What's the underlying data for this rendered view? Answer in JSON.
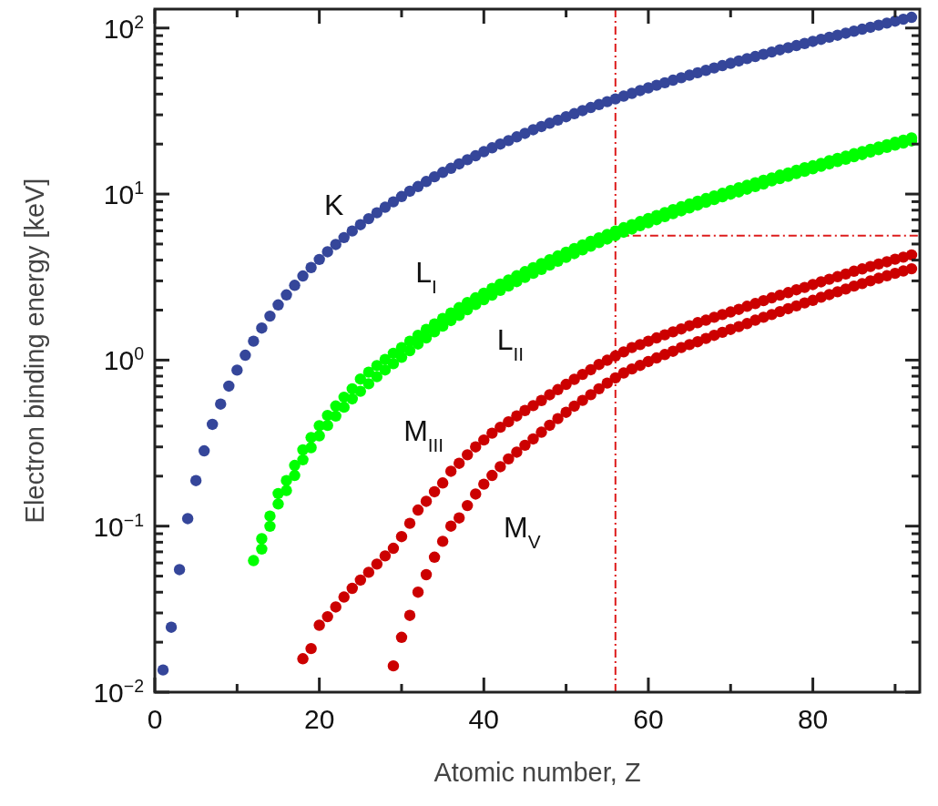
{
  "chart_data": {
    "type": "scatter",
    "xlabel": "Atomic number, Z",
    "ylabel": "Electron binding energy [keV]",
    "log": "y",
    "grid": false,
    "marker": "circle",
    "xlim": [
      0,
      93
    ],
    "ylim": [
      0.01,
      130
    ],
    "xticks": [
      0,
      {
        "value": 10,
        "label": null
      },
      20,
      {
        "value": 30,
        "label": null
      },
      40,
      {
        "value": 50,
        "label": null
      },
      60,
      {
        "value": 70,
        "label": null
      },
      80,
      {
        "value": 90,
        "label": null
      }
    ],
    "yticks": [
      {
        "value": 0.01,
        "label": "10$^{−2}$"
      },
      {
        "value": 0.02,
        "label": null
      },
      {
        "value": 0.03,
        "label": null
      },
      {
        "value": 0.04,
        "label": null
      },
      {
        "value": 0.05,
        "label": null
      },
      {
        "value": 0.06,
        "label": null
      },
      {
        "value": 0.07,
        "label": null
      },
      {
        "value": 0.08,
        "label": null
      },
      {
        "value": 0.09,
        "label": null
      },
      {
        "value": 0.1,
        "label": "10$^{−1}$"
      },
      {
        "value": 0.2,
        "label": null
      },
      {
        "value": 0.3,
        "label": null
      },
      {
        "value": 0.4,
        "label": null
      },
      {
        "value": 0.5,
        "label": null
      },
      {
        "value": 0.6,
        "label": null
      },
      {
        "value": 0.7,
        "label": null
      },
      {
        "value": 0.8,
        "label": null
      },
      {
        "value": 0.9,
        "label": null
      },
      {
        "value": 1,
        "label": "10$^{0}$"
      },
      {
        "value": 2,
        "label": null
      },
      {
        "value": 3,
        "label": null
      },
      {
        "value": 4,
        "label": null
      },
      {
        "value": 5,
        "label": null
      },
      {
        "value": 6,
        "label": null
      },
      {
        "value": 7,
        "label": null
      },
      {
        "value": 8,
        "label": null
      },
      {
        "value": 9,
        "label": null
      },
      {
        "value": 10,
        "label": "10$^{1}$"
      },
      {
        "value": 20,
        "label": null
      },
      {
        "value": 30,
        "label": null
      },
      {
        "value": 40,
        "label": null
      },
      {
        "value": 50,
        "label": null
      },
      {
        "value": 60,
        "label": null
      },
      {
        "value": 70,
        "label": null
      },
      {
        "value": 80,
        "label": null
      },
      {
        "value": 90,
        "label": null
      },
      {
        "value": 100,
        "label": "10$^{2}$"
      }
    ],
    "ref_lines": [
      {
        "axis": "x",
        "value": 56,
        "color": "#dd1c1c",
        "line_style": "dashed"
      },
      {
        "axis": "y",
        "value": 5.62,
        "color": "#dd1c1c",
        "line_style": "dashed"
      }
    ],
    "series": [
      {
        "name": "K",
        "color": "#35469a",
        "x": [
          1,
          2,
          3,
          4,
          5,
          6,
          7,
          8,
          9,
          10,
          11,
          12,
          13,
          14,
          15,
          16,
          17,
          18,
          19,
          20,
          21,
          22,
          23,
          24,
          25,
          26,
          27,
          28,
          29,
          30,
          31,
          32,
          33,
          34,
          35,
          36,
          37,
          38,
          39,
          40,
          41,
          42,
          43,
          44,
          45,
          46,
          47,
          48,
          49,
          50,
          51,
          52,
          53,
          54,
          55,
          56,
          57,
          58,
          59,
          60,
          61,
          62,
          63,
          64,
          65,
          66,
          67,
          68,
          69,
          70,
          71,
          72,
          73,
          74,
          75,
          76,
          77,
          78,
          79,
          80,
          81,
          82,
          83,
          84,
          85,
          86,
          87,
          88,
          89,
          90,
          91,
          92
        ],
        "values": [
          0.0136,
          0.0246,
          0.0547,
          0.111,
          0.188,
          0.284,
          0.41,
          0.543,
          0.697,
          0.87,
          1.07,
          1.3,
          1.56,
          1.84,
          2.15,
          2.47,
          2.82,
          3.21,
          3.61,
          4.04,
          4.49,
          4.97,
          5.47,
          5.99,
          6.54,
          7.11,
          7.71,
          8.33,
          8.98,
          9.66,
          10.4,
          11.1,
          11.9,
          12.7,
          13.5,
          14.3,
          15.2,
          16.1,
          17.0,
          18.0,
          19.0,
          20.0,
          21.0,
          22.1,
          23.2,
          24.4,
          25.5,
          26.7,
          27.9,
          29.2,
          30.5,
          31.8,
          33.2,
          34.6,
          36.0,
          37.4,
          38.9,
          40.4,
          42.0,
          43.6,
          45.2,
          46.8,
          48.5,
          50.2,
          52.0,
          53.8,
          55.6,
          57.5,
          59.4,
          61.3,
          63.3,
          65.4,
          67.4,
          69.5,
          71.7,
          73.9,
          76.1,
          78.4,
          80.7,
          83.1,
          85.5,
          88.0,
          90.5,
          93.1,
          95.7,
          98.4,
          101,
          104,
          107,
          110,
          113,
          116
        ]
      },
      {
        "name": "L$_{I}$",
        "color": "#00ff00",
        "x": [
          12,
          13,
          14,
          15,
          16,
          17,
          18,
          19,
          20,
          21,
          22,
          23,
          24,
          25,
          26,
          27,
          28,
          29,
          30,
          31,
          32,
          33,
          34,
          35,
          36,
          37,
          38,
          39,
          40,
          41,
          42,
          43,
          44,
          45,
          46,
          47,
          48,
          49,
          50,
          51,
          52,
          53,
          54,
          55,
          56,
          57,
          58,
          59,
          60,
          61,
          62,
          63,
          64,
          65,
          66,
          67,
          68,
          69,
          70,
          71,
          72,
          73,
          74,
          75,
          76,
          77,
          78,
          79,
          80,
          81,
          82,
          83,
          84,
          85,
          86,
          87,
          88,
          89,
          90,
          91,
          92
        ],
        "values": [
          0.062,
          0.084,
          0.115,
          0.157,
          0.188,
          0.232,
          0.288,
          0.342,
          0.403,
          0.464,
          0.529,
          0.598,
          0.671,
          0.769,
          0.846,
          0.926,
          1.01,
          1.1,
          1.19,
          1.3,
          1.41,
          1.53,
          1.65,
          1.78,
          1.92,
          2.07,
          2.22,
          2.37,
          2.53,
          2.7,
          2.87,
          3.04,
          3.22,
          3.41,
          3.6,
          3.81,
          4.02,
          4.24,
          4.46,
          4.7,
          4.94,
          5.19,
          5.45,
          5.71,
          5.99,
          6.27,
          6.55,
          6.83,
          7.13,
          7.43,
          7.74,
          8.05,
          8.38,
          8.71,
          9.05,
          9.39,
          9.75,
          10.1,
          10.5,
          10.9,
          11.3,
          11.7,
          12.1,
          12.5,
          13.0,
          13.4,
          13.9,
          14.4,
          14.8,
          15.3,
          15.9,
          16.4,
          16.9,
          17.5,
          18.0,
          18.6,
          19.2,
          19.8,
          20.5,
          21.1,
          21.8
        ]
      },
      {
        "name": "L$_{II}$",
        "color": "#00ff00",
        "x": [
          13,
          14,
          15,
          16,
          17,
          18,
          19,
          20,
          21,
          22,
          23,
          24,
          25,
          26,
          27,
          28,
          29,
          30,
          31,
          32,
          33,
          34,
          35,
          36,
          37,
          38,
          39,
          40,
          41,
          42,
          43,
          44,
          45,
          46,
          47,
          48,
          49,
          50,
          51,
          52,
          53,
          54,
          55,
          56,
          57,
          58,
          59,
          60,
          61,
          62,
          63,
          64,
          65,
          66,
          67,
          68,
          69,
          70,
          71,
          72,
          73,
          74,
          75,
          76,
          77,
          78,
          79,
          80,
          81,
          82,
          83,
          84,
          85,
          86,
          87,
          88,
          89,
          90,
          91,
          92
        ],
        "values": [
          0.0728,
          0.0998,
          0.136,
          0.164,
          0.202,
          0.251,
          0.297,
          0.35,
          0.404,
          0.46,
          0.52,
          0.584,
          0.649,
          0.72,
          0.794,
          0.872,
          0.951,
          1.04,
          1.14,
          1.25,
          1.36,
          1.48,
          1.6,
          1.73,
          1.86,
          2.01,
          2.16,
          2.31,
          2.46,
          2.63,
          2.79,
          2.97,
          3.15,
          3.33,
          3.52,
          3.73,
          3.94,
          4.16,
          4.38,
          4.61,
          4.85,
          5.1,
          5.36,
          5.62,
          5.89,
          6.16,
          6.44,
          6.72,
          7.01,
          7.31,
          7.62,
          7.93,
          8.25,
          8.58,
          8.92,
          9.26,
          9.62,
          9.98,
          10.3,
          10.7,
          11.1,
          11.5,
          12.0,
          12.4,
          12.8,
          13.3,
          13.7,
          14.2,
          14.7,
          15.2,
          15.7,
          16.2,
          16.8,
          17.3,
          17.9,
          18.5,
          19.1,
          19.7,
          20.3,
          20.9
        ]
      },
      {
        "name": "M$_{III}$",
        "color": "#cc0000",
        "x": [
          18,
          19,
          20,
          21,
          22,
          23,
          24,
          25,
          26,
          27,
          28,
          29,
          30,
          31,
          32,
          33,
          34,
          35,
          36,
          37,
          38,
          39,
          40,
          41,
          42,
          43,
          44,
          45,
          46,
          47,
          48,
          49,
          50,
          51,
          52,
          53,
          54,
          55,
          56,
          57,
          58,
          59,
          60,
          61,
          62,
          63,
          64,
          65,
          66,
          67,
          68,
          69,
          70,
          71,
          72,
          73,
          74,
          75,
          76,
          77,
          78,
          79,
          80,
          81,
          82,
          83,
          84,
          85,
          86,
          87,
          88,
          89,
          90,
          91,
          92
        ],
        "values": [
          0.0159,
          0.0183,
          0.0253,
          0.0285,
          0.0326,
          0.0374,
          0.0422,
          0.0473,
          0.0527,
          0.0591,
          0.0662,
          0.0735,
          0.0865,
          0.104,
          0.125,
          0.141,
          0.161,
          0.182,
          0.214,
          0.239,
          0.269,
          0.3,
          0.33,
          0.363,
          0.394,
          0.425,
          0.461,
          0.497,
          0.532,
          0.571,
          0.618,
          0.664,
          0.714,
          0.766,
          0.82,
          0.875,
          0.941,
          0.998,
          1.06,
          1.12,
          1.19,
          1.24,
          1.3,
          1.36,
          1.42,
          1.48,
          1.54,
          1.61,
          1.68,
          1.74,
          1.81,
          1.88,
          1.95,
          2.02,
          2.11,
          2.19,
          2.28,
          2.37,
          2.46,
          2.55,
          2.65,
          2.74,
          2.85,
          2.96,
          3.07,
          3.18,
          3.3,
          3.43,
          3.54,
          3.66,
          3.79,
          3.91,
          4.05,
          4.17,
          4.3
        ]
      },
      {
        "name": "M$_{V}$",
        "color": "#cc0000",
        "x": [
          29,
          30,
          31,
          32,
          33,
          34,
          35,
          36,
          37,
          38,
          39,
          40,
          41,
          42,
          43,
          44,
          45,
          46,
          47,
          48,
          49,
          50,
          51,
          52,
          53,
          54,
          55,
          56,
          57,
          58,
          59,
          60,
          61,
          62,
          63,
          64,
          65,
          66,
          67,
          68,
          69,
          70,
          71,
          72,
          73,
          74,
          75,
          76,
          77,
          78,
          79,
          80,
          81,
          82,
          83,
          84,
          85,
          86,
          87,
          88,
          89,
          90,
          91,
          92
        ],
        "values": [
          0.0144,
          0.0214,
          0.029,
          0.04,
          0.051,
          0.065,
          0.081,
          0.1,
          0.112,
          0.133,
          0.156,
          0.179,
          0.202,
          0.228,
          0.254,
          0.279,
          0.307,
          0.335,
          0.368,
          0.405,
          0.444,
          0.485,
          0.528,
          0.572,
          0.619,
          0.672,
          0.727,
          0.781,
          0.836,
          0.884,
          0.929,
          0.98,
          1.03,
          1.08,
          1.13,
          1.19,
          1.24,
          1.29,
          1.35,
          1.41,
          1.47,
          1.53,
          1.59,
          1.66,
          1.74,
          1.81,
          1.88,
          1.96,
          2.04,
          2.12,
          2.21,
          2.29,
          2.39,
          2.48,
          2.58,
          2.68,
          2.79,
          2.89,
          3.0,
          3.11,
          3.22,
          3.33,
          3.44,
          3.55
        ]
      }
    ]
  }
}
